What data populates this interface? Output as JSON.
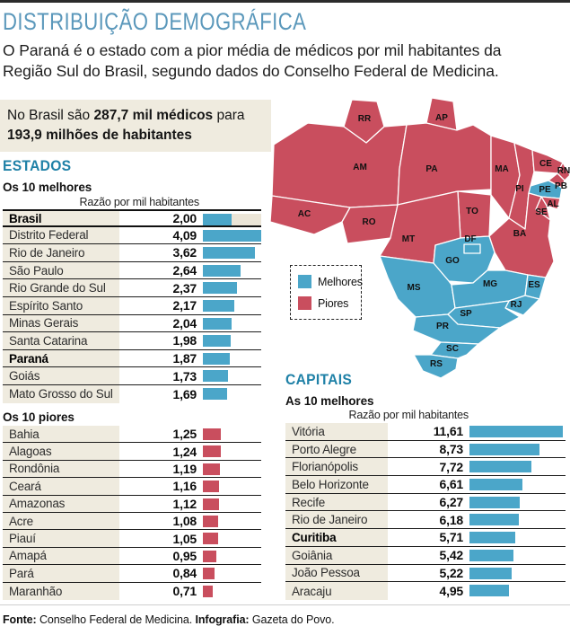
{
  "page": {
    "title": "DISTRIBUIÇÃO DEMOGRÁFICA",
    "intro": "O Paraná é o estado com a pior média de médicos por mil habitantes da Região Sul do Brasil, segundo dados do Conselho Federal de Medicina.",
    "highlight": {
      "pre": "No Brasil são ",
      "bold1": "287,7 mil médicos",
      "mid": " para ",
      "bold2": "193,9 milhões de habitantes"
    },
    "footer": {
      "source_label": "Fonte:",
      "source": " Conselho Federal de Medicina. ",
      "credit_label": "Infografia:",
      "credit": " Gazeta do Povo."
    }
  },
  "colors": {
    "blue": "#4ba6c9",
    "red": "#c94e5e",
    "beige": "#efebdf",
    "teal": "#1f81a7",
    "title_blue": "#5b98bb"
  },
  "estados": {
    "heading": "ESTADOS",
    "best_title": "Os 10 melhores",
    "worst_title": "Os 10 piores",
    "col_header": "Razão por mil habitantes",
    "best": [
      {
        "label": "Brasil",
        "value": "2,00",
        "num": 2.0,
        "bold": true,
        "benchmark": true
      },
      {
        "label": "Distrito Federal",
        "value": "4,09",
        "num": 4.09,
        "bold": false,
        "benchmark": false
      },
      {
        "label": "Rio de Janeiro",
        "value": "3,62",
        "num": 3.62,
        "bold": false,
        "benchmark": false
      },
      {
        "label": "São Paulo",
        "value": "2,64",
        "num": 2.64,
        "bold": false,
        "benchmark": false
      },
      {
        "label": "Rio Grande do Sul",
        "value": "2,37",
        "num": 2.37,
        "bold": false,
        "benchmark": false
      },
      {
        "label": "Espírito Santo",
        "value": "2,17",
        "num": 2.17,
        "bold": false,
        "benchmark": false
      },
      {
        "label": "Minas Gerais",
        "value": "2,04",
        "num": 2.04,
        "bold": false,
        "benchmark": false
      },
      {
        "label": "Santa Catarina",
        "value": "1,98",
        "num": 1.98,
        "bold": false,
        "benchmark": false
      },
      {
        "label": "Paraná",
        "value": "1,87",
        "num": 1.87,
        "bold": true,
        "benchmark": false
      },
      {
        "label": "Goiás",
        "value": "1,73",
        "num": 1.73,
        "bold": false,
        "benchmark": false
      },
      {
        "label": "Mato Grosso do Sul",
        "value": "1,69",
        "num": 1.69,
        "bold": false,
        "benchmark": false
      }
    ],
    "worst": [
      {
        "label": "Bahia",
        "value": "1,25",
        "num": 1.25,
        "bold": false,
        "benchmark": false
      },
      {
        "label": "Alagoas",
        "value": "1,24",
        "num": 1.24,
        "bold": false,
        "benchmark": false
      },
      {
        "label": "Rondônia",
        "value": "1,19",
        "num": 1.19,
        "bold": false,
        "benchmark": false
      },
      {
        "label": "Ceará",
        "value": "1,16",
        "num": 1.16,
        "bold": false,
        "benchmark": false
      },
      {
        "label": "Amazonas",
        "value": "1,12",
        "num": 1.12,
        "bold": false,
        "benchmark": false
      },
      {
        "label": "Acre",
        "value": "1,08",
        "num": 1.08,
        "bold": false,
        "benchmark": false
      },
      {
        "label": "Piauí",
        "value": "1,05",
        "num": 1.05,
        "bold": false,
        "benchmark": false
      },
      {
        "label": "Amapá",
        "value": "0,95",
        "num": 0.95,
        "bold": false,
        "benchmark": false
      },
      {
        "label": "Pará",
        "value": "0,84",
        "num": 0.84,
        "bold": false,
        "benchmark": false
      },
      {
        "label": "Maranhão",
        "value": "0,71",
        "num": 0.71,
        "bold": false,
        "benchmark": false
      }
    ]
  },
  "capitais": {
    "heading": "CAPITAIS",
    "best_title": "As 10 melhores",
    "col_header": "Razão por mil habitantes",
    "best": [
      {
        "label": "Vitória",
        "value": "11,61",
        "num": 11.61,
        "bold": false,
        "benchmark": false
      },
      {
        "label": "Porto Alegre",
        "value": "8,73",
        "num": 8.73,
        "bold": false,
        "benchmark": false
      },
      {
        "label": "Florianópolis",
        "value": "7,72",
        "num": 7.72,
        "bold": false,
        "benchmark": false
      },
      {
        "label": "Belo Horizonte",
        "value": "6,61",
        "num": 6.61,
        "bold": false,
        "benchmark": false
      },
      {
        "label": "Recife",
        "value": "6,27",
        "num": 6.27,
        "bold": false,
        "benchmark": false
      },
      {
        "label": "Rio de Janeiro",
        "value": "6,18",
        "num": 6.18,
        "bold": false,
        "benchmark": false
      },
      {
        "label": "Curitiba",
        "value": "5,71",
        "num": 5.71,
        "bold": true,
        "benchmark": false
      },
      {
        "label": "Goiânia",
        "value": "5,42",
        "num": 5.42,
        "bold": false,
        "benchmark": false
      },
      {
        "label": "João Pessoa",
        "value": "5,22",
        "num": 5.22,
        "bold": false,
        "benchmark": false
      },
      {
        "label": "Aracaju",
        "value": "4,95",
        "num": 4.95,
        "bold": false,
        "benchmark": false
      }
    ]
  },
  "map": {
    "legend": [
      {
        "label": "Melhores",
        "group": "melhores"
      },
      {
        "label": "Piores",
        "group": "piores"
      }
    ],
    "states": [
      {
        "code": "RR",
        "group": "piores"
      },
      {
        "code": "AP",
        "group": "piores"
      },
      {
        "code": "AM",
        "group": "piores"
      },
      {
        "code": "PA",
        "group": "piores"
      },
      {
        "code": "MA",
        "group": "piores"
      },
      {
        "code": "PI",
        "group": "piores"
      },
      {
        "code": "CE",
        "group": "piores"
      },
      {
        "code": "RN",
        "group": "piores"
      },
      {
        "code": "PB",
        "group": "piores"
      },
      {
        "code": "PE",
        "group": "melhores"
      },
      {
        "code": "AL",
        "group": "piores"
      },
      {
        "code": "SE",
        "group": "piores"
      },
      {
        "code": "AC",
        "group": "piores"
      },
      {
        "code": "RO",
        "group": "piores"
      },
      {
        "code": "TO",
        "group": "piores"
      },
      {
        "code": "MT",
        "group": "piores"
      },
      {
        "code": "BA",
        "group": "piores"
      },
      {
        "code": "GO",
        "group": "melhores"
      },
      {
        "code": "DF",
        "group": "melhores"
      },
      {
        "code": "MS",
        "group": "melhores"
      },
      {
        "code": "MG",
        "group": "melhores"
      },
      {
        "code": "ES",
        "group": "melhores"
      },
      {
        "code": "RJ",
        "group": "melhores"
      },
      {
        "code": "SP",
        "group": "melhores"
      },
      {
        "code": "PR",
        "group": "melhores"
      },
      {
        "code": "SC",
        "group": "melhores"
      },
      {
        "code": "RS",
        "group": "melhores"
      }
    ]
  },
  "chart_data": [
    {
      "type": "bar",
      "orientation": "horizontal",
      "title": "Estados — Os 10 melhores",
      "xlabel": "Razão por mil habitantes",
      "categories": [
        "Brasil",
        "Distrito Federal",
        "Rio de Janeiro",
        "São Paulo",
        "Rio Grande do Sul",
        "Espírito Santo",
        "Minas Gerais",
        "Santa Catarina",
        "Paraná",
        "Goiás",
        "Mato Grosso do Sul"
      ],
      "values": [
        2.0,
        4.09,
        3.62,
        2.64,
        2.37,
        2.17,
        2.04,
        1.98,
        1.87,
        1.73,
        1.69
      ],
      "bar_color": "#4ba6c9"
    },
    {
      "type": "bar",
      "orientation": "horizontal",
      "title": "Estados — Os 10 piores",
      "xlabel": "Razão por mil habitantes",
      "categories": [
        "Bahia",
        "Alagoas",
        "Rondônia",
        "Ceará",
        "Amazonas",
        "Acre",
        "Piauí",
        "Amapá",
        "Pará",
        "Maranhão"
      ],
      "values": [
        1.25,
        1.24,
        1.19,
        1.16,
        1.12,
        1.08,
        1.05,
        0.95,
        0.84,
        0.71
      ],
      "bar_color": "#c94e5e"
    },
    {
      "type": "bar",
      "orientation": "horizontal",
      "title": "Capitais — As 10 melhores",
      "xlabel": "Razão por mil habitantes",
      "categories": [
        "Vitória",
        "Porto Alegre",
        "Florianópolis",
        "Belo Horizonte",
        "Recife",
        "Rio de Janeiro",
        "Curitiba",
        "Goiânia",
        "João Pessoa",
        "Aracaju"
      ],
      "values": [
        11.61,
        8.73,
        7.72,
        6.61,
        6.27,
        6.18,
        5.71,
        5.42,
        5.22,
        4.95
      ],
      "bar_color": "#4ba6c9"
    }
  ]
}
